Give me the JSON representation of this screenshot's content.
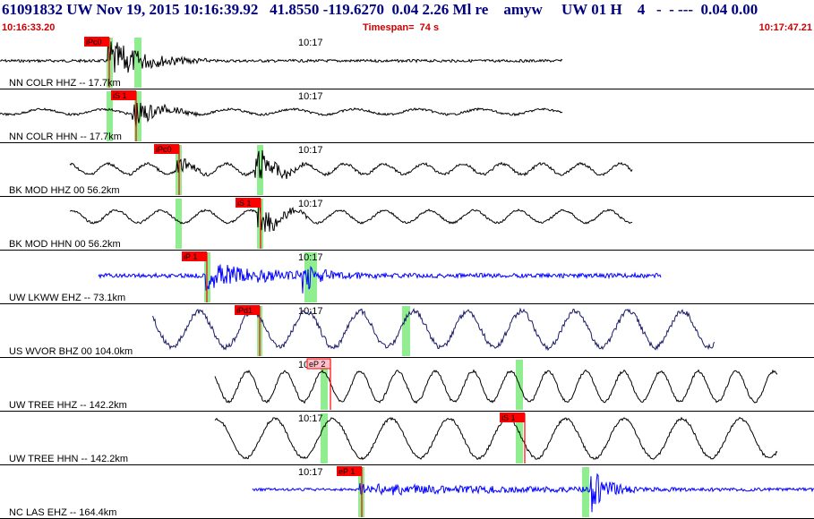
{
  "header": {
    "title": "61091832 UW Nov 19, 2015 10:16:39.92   41.8550 -119.6270  0.04 2.26 Ml re    amyw     UW 01 H    4   -  - ---  0.04 0.00",
    "start_time": "10:16:33.20",
    "timespan": "Timespan=  74 s",
    "end_time": "10:17:47.21"
  },
  "colors": {
    "background": "#ffffff",
    "title": "#000080",
    "time_labels": "#cc0000",
    "pick_flag": "#ff0000",
    "pick_window": "#90ee90",
    "trace_black": "#000000",
    "trace_blue": "#0000ff",
    "trace_navy": "#1a1a66"
  },
  "minute_tick_label": "10:17",
  "traces": [
    {
      "label": "NN COLR HHZ -- 17.7km",
      "color": "#000000",
      "picks": [
        {
          "label": "iPc0",
          "color": "red"
        }
      ]
    },
    {
      "label": "NN COLR HHN -- 17.7km",
      "color": "#000000",
      "picks": [
        {
          "label": "iS 1",
          "color": "red"
        }
      ]
    },
    {
      "label": "BK MOD HHZ 00 56.2km",
      "color": "#000000",
      "picks": [
        {
          "label": "iPc0",
          "color": "red"
        }
      ]
    },
    {
      "label": "BK MOD HHN 00 56.2km",
      "color": "#000000",
      "picks": [
        {
          "label": "iS 1",
          "color": "red"
        }
      ]
    },
    {
      "label": "UW LKWW EHZ -- 73.1km",
      "color": "#0000ff",
      "picks": [
        {
          "label": "iP 1",
          "color": "red"
        }
      ]
    },
    {
      "label": "US WVOR BHZ 00 104.0km",
      "color": "#1a1a66",
      "picks": [
        {
          "label": "iPd1",
          "color": "red"
        }
      ]
    },
    {
      "label": "UW TREE HHZ -- 142.2km",
      "color": "#000000",
      "picks": [
        {
          "label": "eP 2",
          "color": "pink"
        }
      ]
    },
    {
      "label": "UW TREE HHN -- 142.2km",
      "color": "#000000",
      "picks": [
        {
          "label": "iS 1",
          "color": "red"
        }
      ]
    },
    {
      "label": "NC LAS EHZ -- 164.4km",
      "color": "#0000ff",
      "picks": [
        {
          "label": "eP 1",
          "color": "red"
        }
      ]
    }
  ]
}
